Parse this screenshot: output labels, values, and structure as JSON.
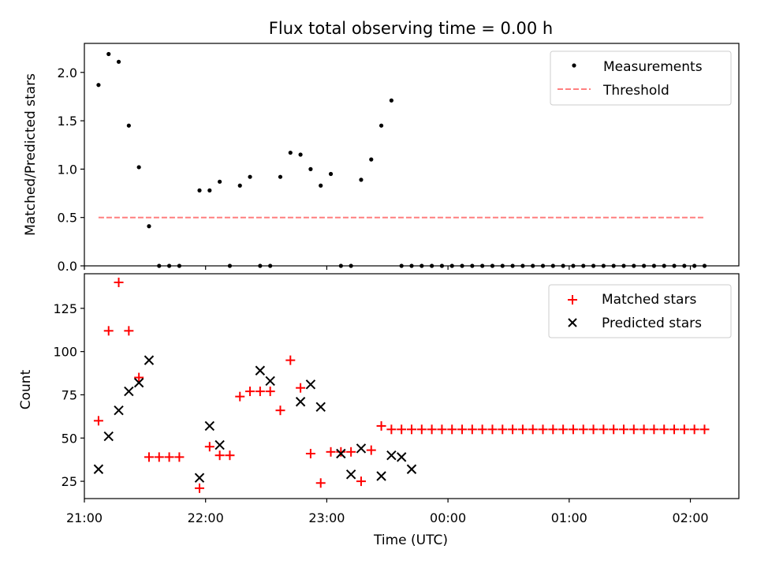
{
  "chart_data": [
    {
      "type": "scatter",
      "title": "Flux total observing time = 0.00 h",
      "xlabel": "",
      "ylabel": "Matched/Predicted stars",
      "xlim": [
        "21:00",
        "02:24"
      ],
      "ylim": [
        0,
        2.3
      ],
      "x_ticks": [
        "21:00",
        "22:00",
        "23:00",
        "00:00",
        "01:00",
        "02:00"
      ],
      "y_ticks": [
        "0.0",
        "0.5",
        "1.0",
        "1.5",
        "2.0"
      ],
      "legend": {
        "placement": "top-right",
        "entries": [
          "Measurements",
          "Threshold"
        ]
      },
      "series": [
        {
          "name": "Measurements",
          "marker": "dot",
          "color": "#000000",
          "x": [
            "21:07",
            "21:12",
            "21:17",
            "21:22",
            "21:27",
            "21:32",
            "21:37",
            "21:42",
            "21:47",
            "21:57",
            "22:02",
            "22:07",
            "22:12",
            "22:17",
            "22:22",
            "22:27",
            "22:32",
            "22:37",
            "22:42",
            "22:47",
            "22:52",
            "22:57",
            "23:02",
            "23:07",
            "23:12",
            "23:17",
            "23:22",
            "23:27",
            "23:32",
            "23:37",
            "23:42",
            "23:47",
            "23:52",
            "23:57",
            "00:02",
            "00:07",
            "00:12",
            "00:17",
            "00:22",
            "00:27",
            "00:32",
            "00:37",
            "00:42",
            "00:47",
            "00:52",
            "00:57",
            "01:02",
            "01:07",
            "01:12",
            "01:17",
            "01:22",
            "01:27",
            "01:32",
            "01:37",
            "01:42",
            "01:47",
            "01:52",
            "01:57",
            "02:02",
            "02:07"
          ],
          "y": [
            1.87,
            2.19,
            2.11,
            1.45,
            1.02,
            0.41,
            0,
            0,
            0,
            0.78,
            0.78,
            0.87,
            0,
            0.83,
            0.92,
            0,
            0,
            0.92,
            1.17,
            1.15,
            1.0,
            0.83,
            0.95,
            0,
            0,
            0.89,
            1.1,
            1.45,
            1.71,
            0,
            0,
            0,
            0,
            0,
            0,
            0,
            0,
            0,
            0,
            0,
            0,
            0,
            0,
            0,
            0,
            0,
            0,
            0,
            0,
            0,
            0,
            0,
            0,
            0,
            0,
            0,
            0,
            0,
            0,
            0
          ]
        },
        {
          "name": "Threshold",
          "style": "dashed",
          "color": "#ff7f7f",
          "x": [
            "21:07",
            "02:07"
          ],
          "y": [
            0.5,
            0.5
          ]
        }
      ]
    },
    {
      "type": "scatter",
      "title": "",
      "xlabel": "Time (UTC)",
      "ylabel": "Count",
      "xlim": [
        "21:00",
        "02:24"
      ],
      "ylim": [
        15,
        145
      ],
      "x_ticks": [
        "21:00",
        "22:00",
        "23:00",
        "00:00",
        "01:00",
        "02:00"
      ],
      "y_ticks": [
        "25",
        "50",
        "75",
        "100",
        "125"
      ],
      "legend": {
        "placement": "top-right",
        "entries": [
          "Matched stars",
          "Predicted stars"
        ]
      },
      "series": [
        {
          "name": "Matched stars",
          "marker": "plus",
          "color": "#ff0000",
          "x": [
            "21:07",
            "21:12",
            "21:17",
            "21:22",
            "21:27",
            "21:32",
            "21:37",
            "21:42",
            "21:47",
            "21:57",
            "22:02",
            "22:07",
            "22:12",
            "22:17",
            "22:22",
            "22:27",
            "22:32",
            "22:37",
            "22:42",
            "22:47",
            "22:52",
            "22:57",
            "23:02",
            "23:07",
            "23:12",
            "23:17",
            "23:22",
            "23:27",
            "23:32",
            "23:37",
            "23:42",
            "23:47",
            "23:52",
            "23:57",
            "00:02",
            "00:07",
            "00:12",
            "00:17",
            "00:22",
            "00:27",
            "00:32",
            "00:37",
            "00:42",
            "00:47",
            "00:52",
            "00:57",
            "01:02",
            "01:07",
            "01:12",
            "01:17",
            "01:22",
            "01:27",
            "01:32",
            "01:37",
            "01:42",
            "01:47",
            "01:52",
            "01:57",
            "02:02",
            "02:07"
          ],
          "y": [
            60,
            112,
            140,
            112,
            85,
            39,
            39,
            39,
            39,
            21,
            45,
            40,
            40,
            74,
            77,
            77,
            77,
            66,
            95,
            79,
            41,
            24,
            42,
            42,
            42,
            25,
            43,
            57,
            55,
            55,
            55,
            55,
            55,
            55,
            55,
            55,
            55,
            55,
            55,
            55,
            55,
            55,
            55,
            55,
            55,
            55,
            55,
            55,
            55,
            55,
            55,
            55,
            55,
            55,
            55,
            55,
            55,
            55,
            55,
            55
          ]
        },
        {
          "name": "Predicted stars",
          "marker": "x",
          "color": "#000000",
          "x": [
            "21:07",
            "21:12",
            "21:17",
            "21:22",
            "21:27",
            "21:32",
            "21:57",
            "22:02",
            "22:07",
            "22:27",
            "22:32",
            "22:47",
            "22:52",
            "22:57",
            "23:07",
            "23:12",
            "23:17",
            "23:27",
            "23:32",
            "23:37",
            "23:42"
          ],
          "y": [
            32,
            51,
            66,
            77,
            82,
            95,
            27,
            57,
            46,
            89,
            83,
            71,
            81,
            68,
            41,
            29,
            44,
            28,
            40,
            39,
            32
          ]
        }
      ]
    }
  ]
}
